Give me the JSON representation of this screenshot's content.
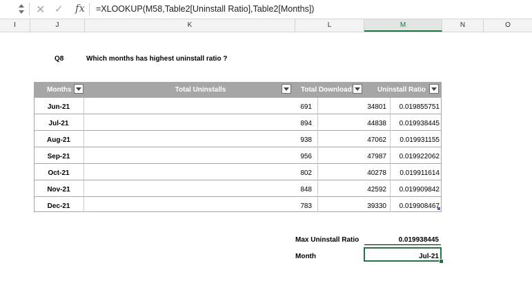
{
  "formula_bar": {
    "cancel_glyph": "✕",
    "enter_glyph": "✓",
    "fx_label": "fx",
    "formula": "=XLOOKUP(M58,Table2[Uninstall Ratio],Table2[Months])"
  },
  "columns": [
    "I",
    "J",
    "K",
    "L",
    "M",
    "N",
    "O"
  ],
  "question": {
    "number": "Q8",
    "text": "Which months has highest uninstall ratio ?"
  },
  "table": {
    "headers": [
      "Months",
      "Total Uninstalls",
      "Total Downloads",
      "Uninstall Ratio"
    ],
    "rows": [
      {
        "month": "Jun-21",
        "uninstalls": "691",
        "downloads": "34801",
        "ratio": "0.019855751"
      },
      {
        "month": "Jul-21",
        "uninstalls": "894",
        "downloads": "44838",
        "ratio": "0.019938445"
      },
      {
        "month": "Aug-21",
        "uninstalls": "938",
        "downloads": "47062",
        "ratio": "0.019931155"
      },
      {
        "month": "Sep-21",
        "uninstalls": "956",
        "downloads": "47987",
        "ratio": "0.019922062"
      },
      {
        "month": "Oct-21",
        "uninstalls": "802",
        "downloads": "40278",
        "ratio": "0.019911614"
      },
      {
        "month": "Nov-21",
        "uninstalls": "848",
        "downloads": "42592",
        "ratio": "0.019909842"
      },
      {
        "month": "Dec-21",
        "uninstalls": "783",
        "downloads": "39330",
        "ratio": "0.019908467"
      }
    ]
  },
  "summary": {
    "max_label": "Max Uninstall Ratio",
    "max_value": "0.019938445",
    "month_label": "Month",
    "month_value": "Jul-21"
  },
  "colors": {
    "header_bg": "#a6a6a6",
    "accent": "#217346"
  }
}
